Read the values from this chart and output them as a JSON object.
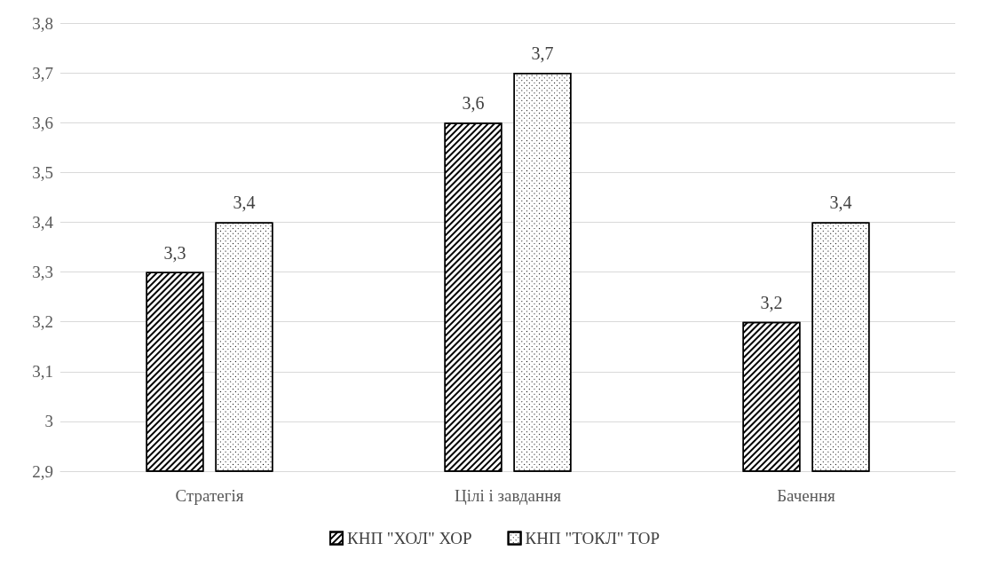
{
  "chart_data": {
    "type": "bar",
    "categories": [
      "Стратегія",
      "Цілі і завдання",
      "Бачення"
    ],
    "series": [
      {
        "name": "КНП \"ХОЛ\" ХОР",
        "color": "#000000",
        "values": [
          3.3,
          3.6,
          3.2
        ],
        "value_labels": [
          "3,3",
          "3,6",
          "3,2"
        ]
      },
      {
        "name": "КНП \"ТОКЛ\" ТОР",
        "color": "#000000",
        "values": [
          3.4,
          3.7,
          3.4
        ],
        "value_labels": [
          "3,4",
          "3,7",
          "3,4"
        ]
      }
    ],
    "ylim": [
      2.9,
      3.8
    ],
    "yticks": [
      {
        "value": 2.9,
        "label": "2,9"
      },
      {
        "value": 3,
        "label": "3"
      },
      {
        "value": 3.1,
        "label": "3,1"
      },
      {
        "value": 3.2,
        "label": "3,2"
      },
      {
        "value": 3.3,
        "label": "3,3"
      },
      {
        "value": 3.4,
        "label": "3,4"
      },
      {
        "value": 3.5,
        "label": "3,5"
      },
      {
        "value": 3.6,
        "label": "3,6"
      },
      {
        "value": 3.7,
        "label": "3,7"
      },
      {
        "value": 3.8,
        "label": "3,8"
      }
    ],
    "grid": "y",
    "legend": "bottom"
  }
}
